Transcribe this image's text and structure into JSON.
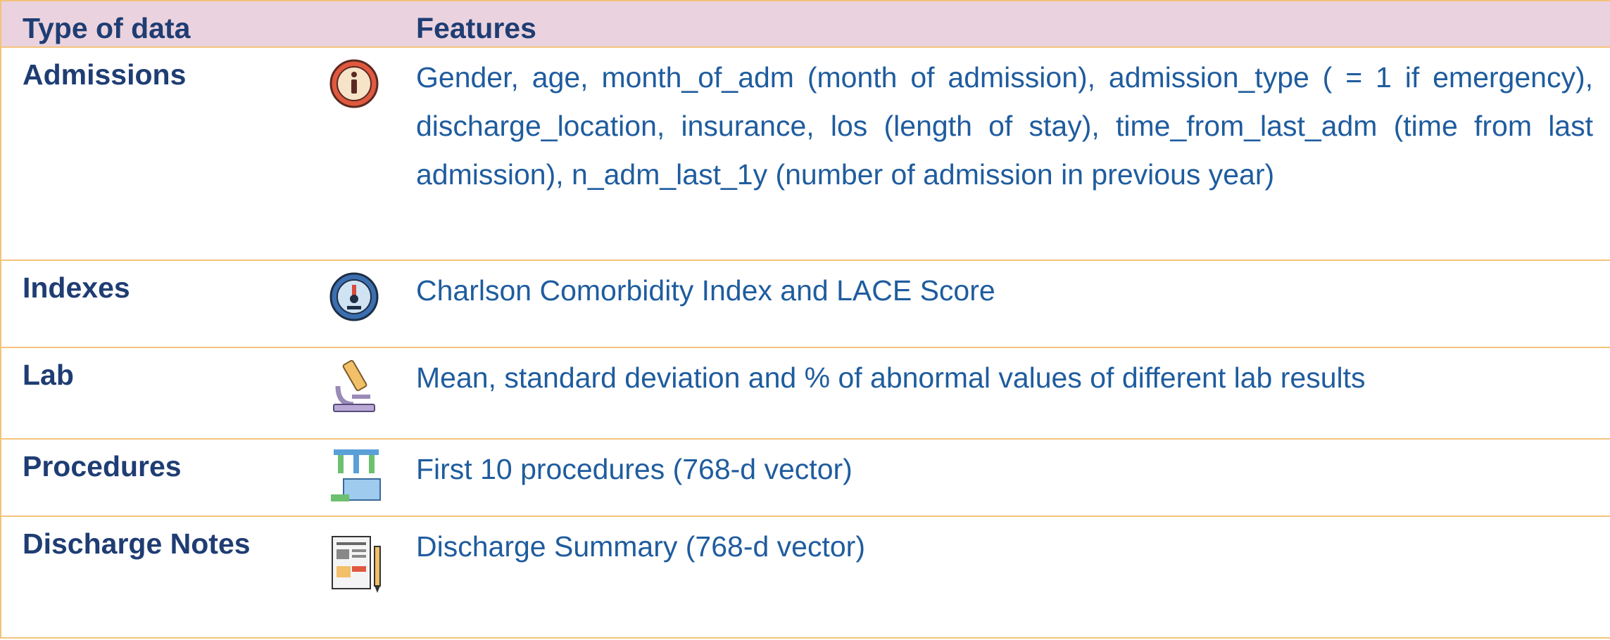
{
  "table": {
    "header": [
      "Type of data",
      "Features"
    ],
    "rows": [
      [
        "Admissions",
        "Gender, age, month_of_adm (month of admission), admission_type ( = 1 if emergency), discharge_location, insurance, los (length of stay), time_from_last_adm (time from last admission), n_adm_last_1y (number of admission in previous year)"
      ],
      [
        "Indexes",
        "Charlson Comorbidity Index and LACE Score"
      ],
      [
        "Lab",
        "Mean, standard deviation and % of abnormal values of different lab results"
      ],
      [
        "Procedures",
        "First 10 procedures (768-d vector)"
      ],
      [
        "Discharge Notes",
        "Discharge Summary (768-d vector)"
      ]
    ]
  }
}
